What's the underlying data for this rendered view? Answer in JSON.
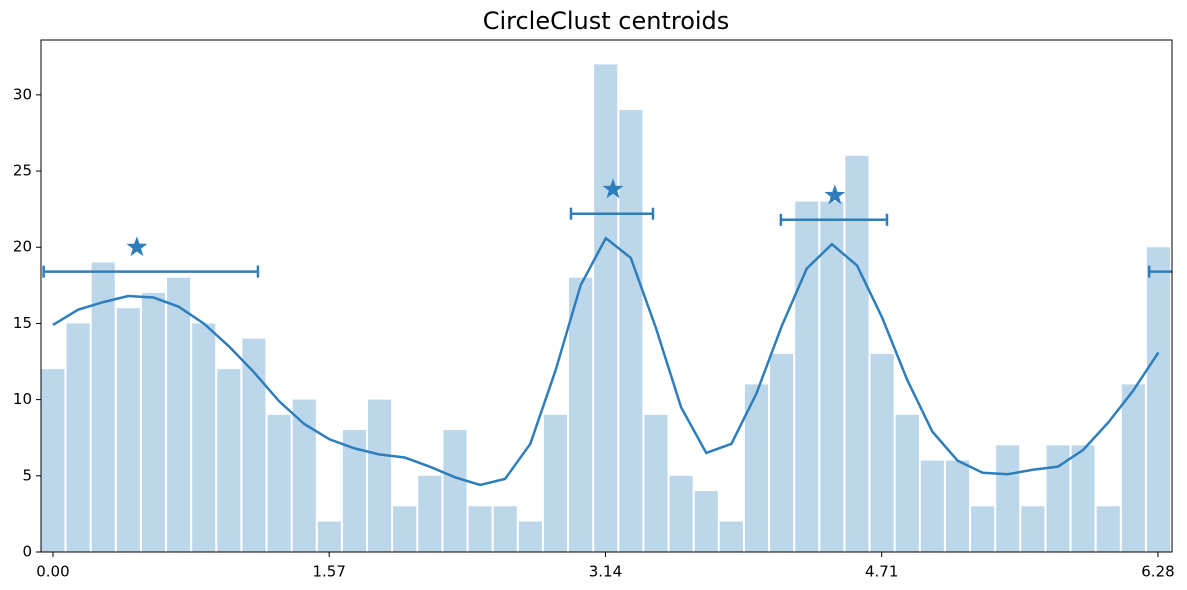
{
  "chart_data": {
    "type": "histogram",
    "title": "CircleClust centroids",
    "bins": [
      -0.0714,
      0.0714,
      0.2142,
      0.357,
      0.4998,
      0.6426,
      0.7854,
      0.9282,
      1.071,
      1.2138,
      1.3566,
      1.4994,
      1.6422,
      1.785,
      1.9278,
      2.0706,
      2.2134,
      2.3562,
      2.499,
      2.6418,
      2.7846,
      2.9274,
      3.0702,
      3.213,
      3.3558,
      3.4986,
      3.6414,
      3.7842,
      3.927,
      4.0698,
      4.2126,
      4.3554,
      4.4982,
      4.641,
      4.7838,
      4.9266,
      5.0694,
      5.2122,
      5.355,
      5.4978,
      5.6406,
      5.7834,
      5.9262,
      6.069,
      6.2118,
      6.3546
    ],
    "values": [
      12,
      15,
      19,
      16,
      17,
      18,
      15,
      12,
      14,
      9,
      10,
      2,
      8,
      10,
      3,
      5,
      8,
      3,
      3,
      2,
      9,
      18,
      32,
      29,
      9,
      5,
      4,
      2,
      11,
      13,
      23,
      23,
      26,
      13,
      9,
      6,
      6,
      3,
      7,
      3,
      7,
      7,
      3,
      11,
      20
    ],
    "color": "#bdd7ea",
    "curve": {
      "color": "#2e7ebc",
      "x": [
        0,
        0.143,
        0.286,
        0.428,
        0.571,
        0.714,
        0.857,
        1.0,
        1.142,
        1.285,
        1.428,
        1.571,
        1.714,
        1.856,
        1.999,
        2.142,
        2.285,
        2.428,
        2.57,
        2.713,
        2.856,
        2.999,
        3.142,
        3.284,
        3.427,
        3.57,
        3.713,
        3.856,
        3.998,
        4.141,
        4.284,
        4.427,
        4.57,
        4.712,
        4.855,
        4.998,
        5.141,
        5.284,
        5.426,
        5.569,
        5.712,
        5.855,
        5.998,
        6.14,
        6.283
      ],
      "values": [
        14.9,
        15.9,
        16.4,
        16.8,
        16.7,
        16.1,
        15.0,
        13.5,
        11.8,
        9.9,
        8.4,
        7.4,
        6.8,
        6.4,
        6.2,
        5.6,
        4.9,
        4.4,
        4.8,
        7.1,
        11.9,
        17.5,
        20.6,
        19.3,
        14.7,
        9.5,
        6.5,
        7.1,
        10.4,
        14.8,
        18.6,
        20.2,
        18.8,
        15.4,
        11.3,
        7.9,
        6.0,
        5.2,
        5.1,
        5.4,
        5.6,
        6.7,
        8.5,
        10.6,
        13.1
      ]
    },
    "centroids": {
      "color": "#2e7ebc",
      "x": [
        0.477,
        3.183,
        4.444
      ],
      "values": [
        20.0,
        23.8,
        23.4
      ],
      "interval_y": [
        18.4,
        22.2,
        21.8
      ],
      "interval_lo": [
        -0.053,
        2.944,
        4.137
      ],
      "interval_hi": [
        1.165,
        3.41,
        4.74
      ]
    },
    "xlim": [
      -0.068,
      6.36
    ],
    "ylim": [
      0,
      33.6
    ],
    "xticks": [
      {
        "value": 0,
        "label": "0.00"
      },
      1.57,
      3.14,
      4.71,
      6.28
    ],
    "yticks": [
      0,
      5,
      10,
      15,
      20,
      25,
      30
    ],
    "grid": false
  }
}
